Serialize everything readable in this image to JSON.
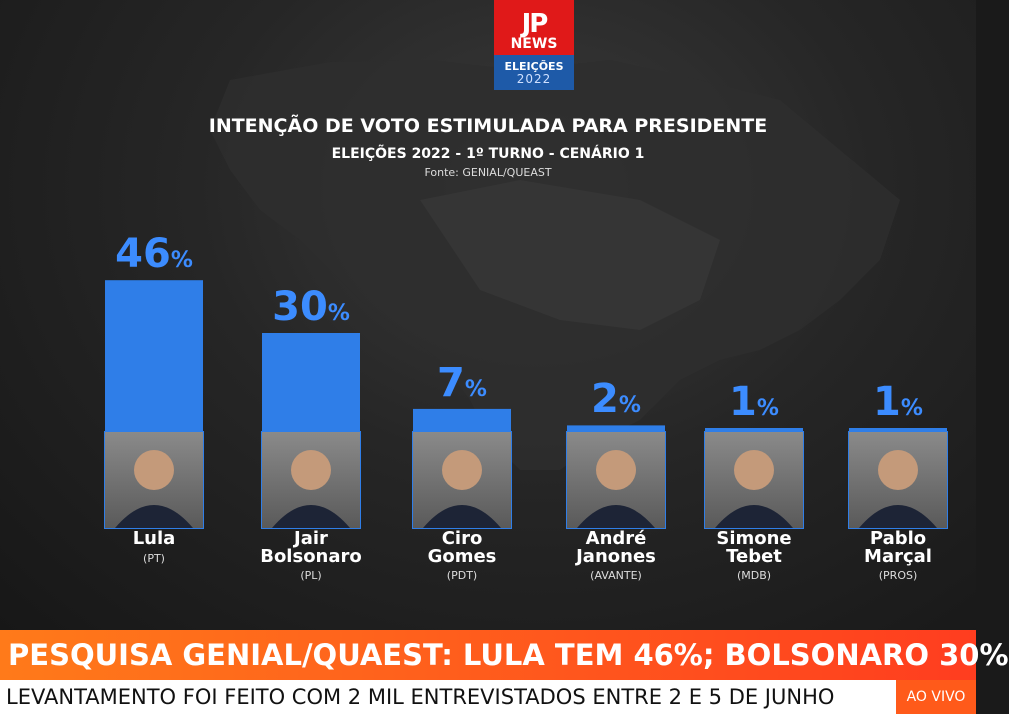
{
  "logo": {
    "mark": "JP",
    "news": "NEWS",
    "badge_line1": "ELEIÇÕES",
    "badge_line2": "2022"
  },
  "title": "INTENÇÃO DE VOTO ESTIMULADA PARA PRESIDENTE",
  "subtitle": "ELEIÇÕES 2022 - 1º TURNO - CENÁRIO 1",
  "source": "Fonte: GENIAL/QUEAST",
  "chart_data": {
    "type": "bar",
    "categories": [
      "Lula",
      "Jair Bolsonaro",
      "Ciro Gomes",
      "André Janones",
      "Simone Tebet",
      "Pablo Marçal"
    ],
    "values": [
      46,
      30,
      7,
      2,
      1,
      1
    ],
    "unit": "%",
    "bar_color": "#2f7ee8",
    "candidates": [
      {
        "line1": "Lula",
        "line2": "",
        "party": "(PT)",
        "pct": "46",
        "pct_sign": "%"
      },
      {
        "line1": "Jair",
        "line2": "Bolsonaro",
        "party": "(PL)",
        "pct": "30",
        "pct_sign": "%"
      },
      {
        "line1": "Ciro",
        "line2": "Gomes",
        "party": "(PDT)",
        "pct": "7",
        "pct_sign": "%"
      },
      {
        "line1": "André",
        "line2": "Janones",
        "party": "(AVANTE)",
        "pct": "2",
        "pct_sign": "%"
      },
      {
        "line1": "Simone",
        "line2": "Tebet",
        "party": "(MDB)",
        "pct": "1",
        "pct_sign": "%"
      },
      {
        "line1": "Pablo",
        "line2": "Marçal",
        "party": "(PROS)",
        "pct": "1",
        "pct_sign": "%"
      }
    ]
  },
  "ticker": {
    "headline": "PESQUISA GENIAL/QUAEST: LULA TEM 46%; BOLSONARO 30%",
    "sub": "LEVANTAMENTO FOI FEITO COM 2 MIL ENTREVISTADOS ENTRE 2 E 5 DE JUNHO",
    "live": "AO VIVO"
  }
}
